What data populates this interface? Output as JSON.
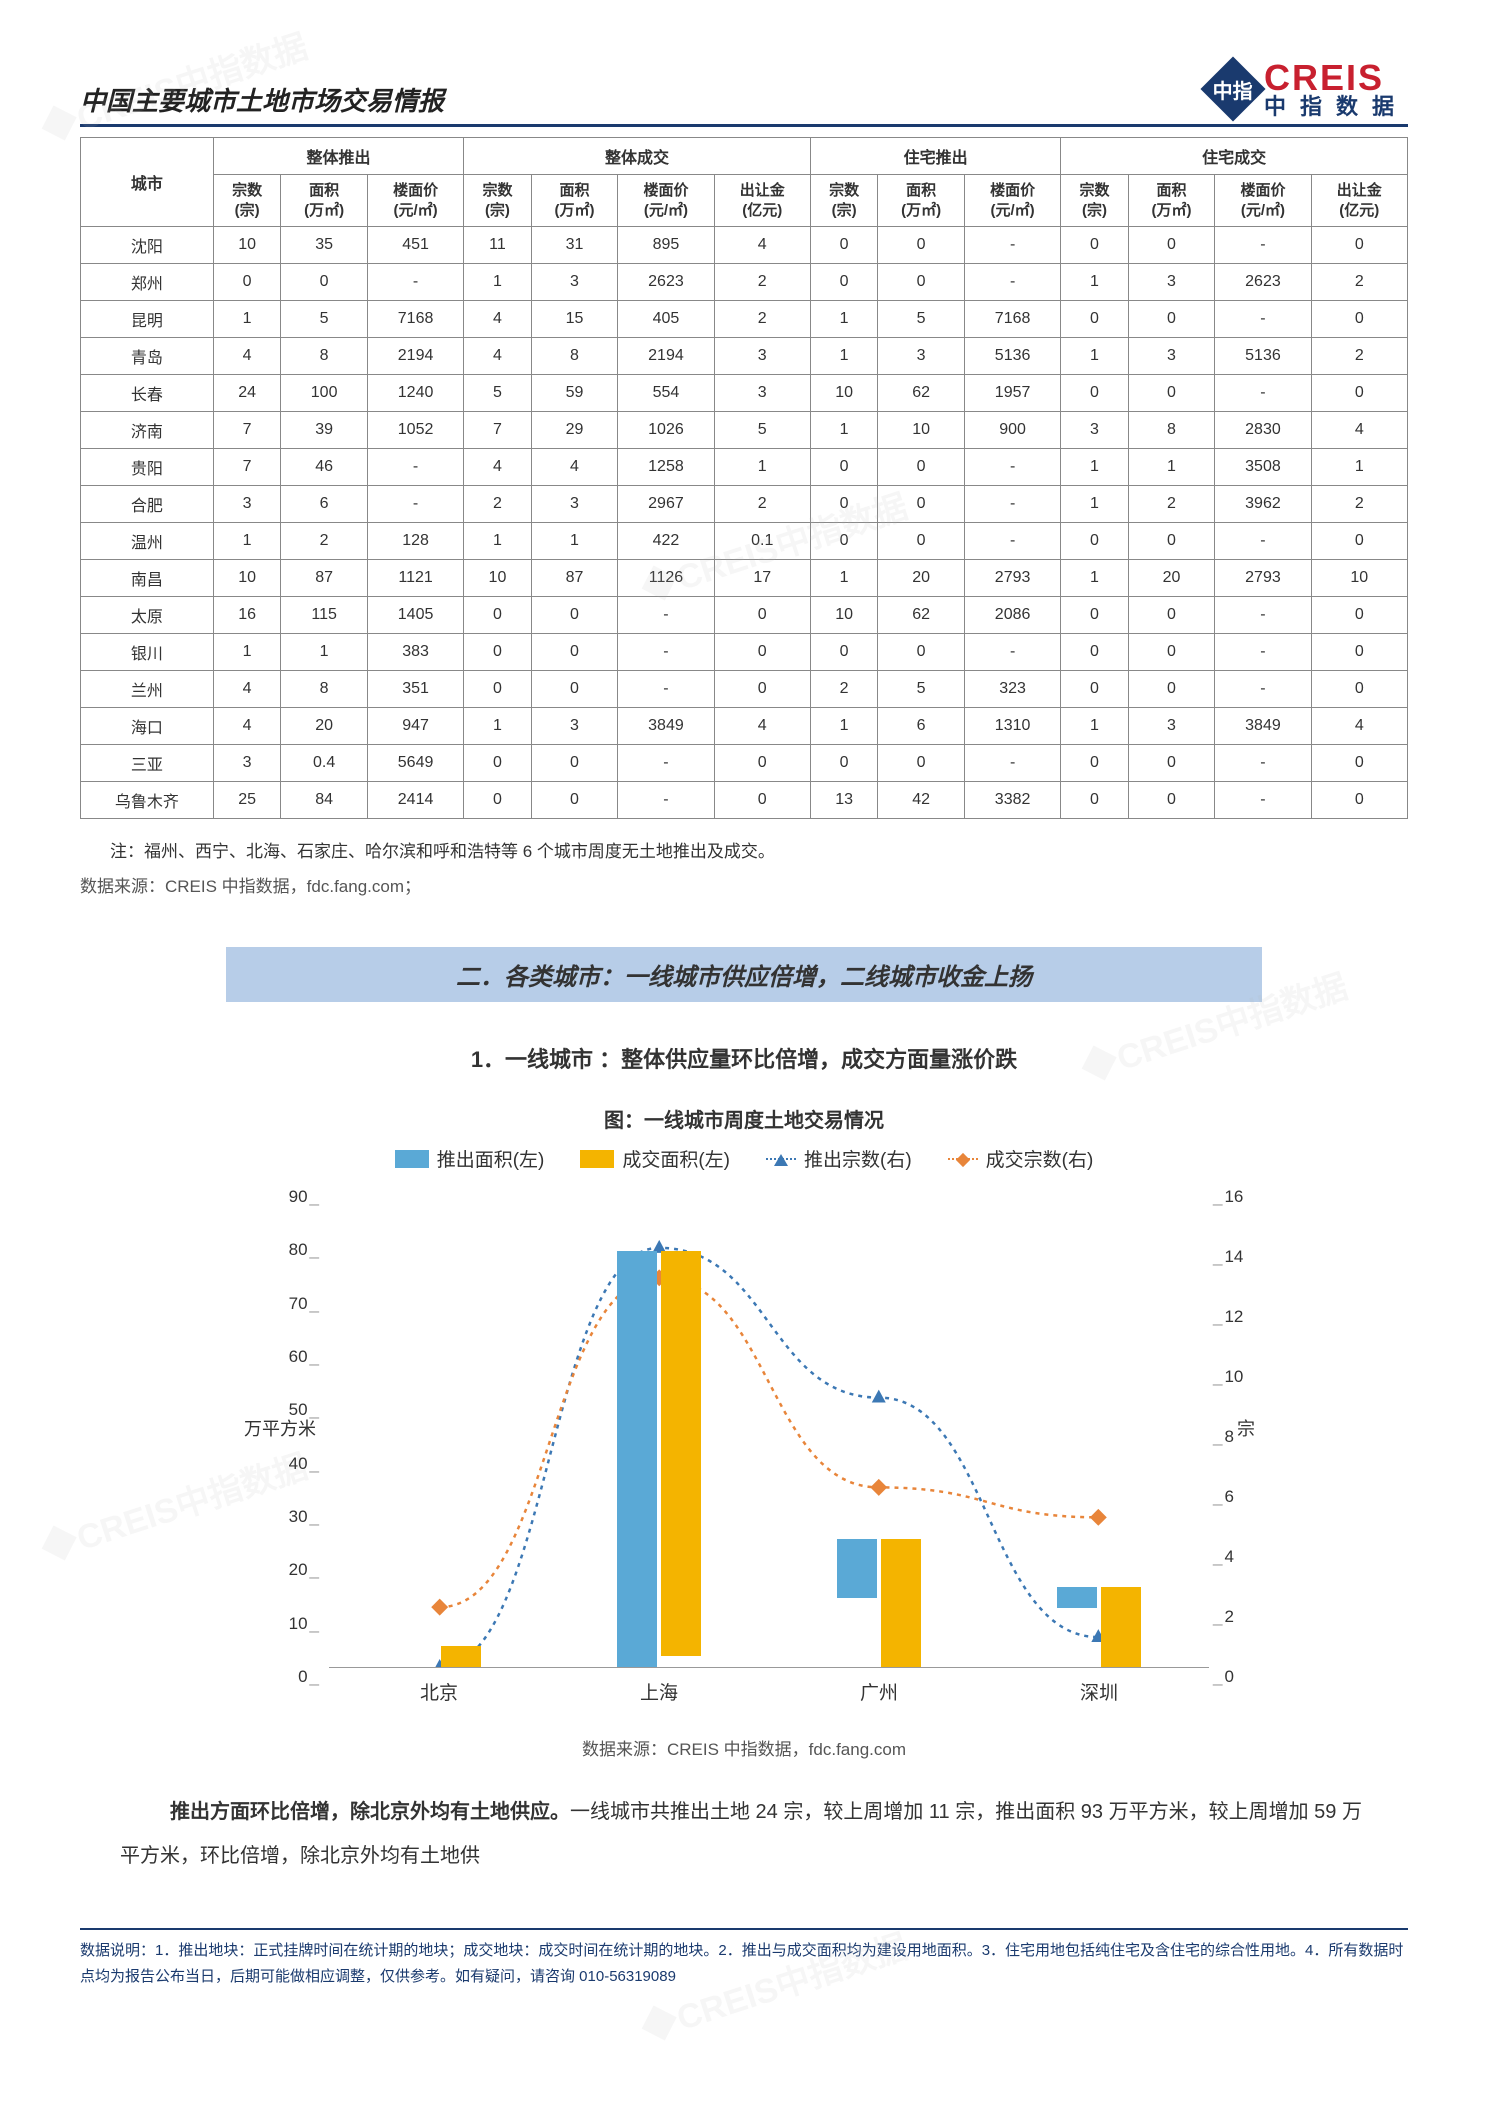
{
  "doc_title": "中国主要城市土地市场交易情报",
  "logo": {
    "en": "CREIS",
    "cn": "中指数据",
    "mark": "中指"
  },
  "watermark_text": "CREIS中指数据",
  "table": {
    "groups": [
      "整体推出",
      "整体成交",
      "住宅推出",
      "住宅成交"
    ],
    "city_header": "城市",
    "sub_headers": {
      "zong": "宗数\n(宗)",
      "mianji": "面积\n(万㎡)",
      "loumian": "楼面价\n(元/㎡)",
      "churang": "出让金\n(亿元)"
    },
    "rows": [
      {
        "city": "沈阳",
        "a": [
          "10",
          "35",
          "451"
        ],
        "b": [
          "11",
          "31",
          "895",
          "4"
        ],
        "c": [
          "0",
          "0",
          "-"
        ],
        "d": [
          "0",
          "0",
          "-",
          "0"
        ]
      },
      {
        "city": "郑州",
        "a": [
          "0",
          "0",
          "-"
        ],
        "b": [
          "1",
          "3",
          "2623",
          "2"
        ],
        "c": [
          "0",
          "0",
          "-"
        ],
        "d": [
          "1",
          "3",
          "2623",
          "2"
        ]
      },
      {
        "city": "昆明",
        "a": [
          "1",
          "5",
          "7168"
        ],
        "b": [
          "4",
          "15",
          "405",
          "2"
        ],
        "c": [
          "1",
          "5",
          "7168"
        ],
        "d": [
          "0",
          "0",
          "-",
          "0"
        ]
      },
      {
        "city": "青岛",
        "a": [
          "4",
          "8",
          "2194"
        ],
        "b": [
          "4",
          "8",
          "2194",
          "3"
        ],
        "c": [
          "1",
          "3",
          "5136"
        ],
        "d": [
          "1",
          "3",
          "5136",
          "2"
        ]
      },
      {
        "city": "长春",
        "a": [
          "24",
          "100",
          "1240"
        ],
        "b": [
          "5",
          "59",
          "554",
          "3"
        ],
        "c": [
          "10",
          "62",
          "1957"
        ],
        "d": [
          "0",
          "0",
          "-",
          "0"
        ]
      },
      {
        "city": "济南",
        "a": [
          "7",
          "39",
          "1052"
        ],
        "b": [
          "7",
          "29",
          "1026",
          "5"
        ],
        "c": [
          "1",
          "10",
          "900"
        ],
        "d": [
          "3",
          "8",
          "2830",
          "4"
        ]
      },
      {
        "city": "贵阳",
        "a": [
          "7",
          "46",
          "-"
        ],
        "b": [
          "4",
          "4",
          "1258",
          "1"
        ],
        "c": [
          "0",
          "0",
          "-"
        ],
        "d": [
          "1",
          "1",
          "3508",
          "1"
        ]
      },
      {
        "city": "合肥",
        "a": [
          "3",
          "6",
          "-"
        ],
        "b": [
          "2",
          "3",
          "2967",
          "2"
        ],
        "c": [
          "0",
          "0",
          "-"
        ],
        "d": [
          "1",
          "2",
          "3962",
          "2"
        ]
      },
      {
        "city": "温州",
        "a": [
          "1",
          "2",
          "128"
        ],
        "b": [
          "1",
          "1",
          "422",
          "0.1"
        ],
        "c": [
          "0",
          "0",
          "-"
        ],
        "d": [
          "0",
          "0",
          "-",
          "0"
        ]
      },
      {
        "city": "南昌",
        "a": [
          "10",
          "87",
          "1121"
        ],
        "b": [
          "10",
          "87",
          "1126",
          "17"
        ],
        "c": [
          "1",
          "20",
          "2793"
        ],
        "d": [
          "1",
          "20",
          "2793",
          "10"
        ]
      },
      {
        "city": "太原",
        "a": [
          "16",
          "115",
          "1405"
        ],
        "b": [
          "0",
          "0",
          "-",
          "0"
        ],
        "c": [
          "10",
          "62",
          "2086"
        ],
        "d": [
          "0",
          "0",
          "-",
          "0"
        ]
      },
      {
        "city": "银川",
        "a": [
          "1",
          "1",
          "383"
        ],
        "b": [
          "0",
          "0",
          "-",
          "0"
        ],
        "c": [
          "0",
          "0",
          "-"
        ],
        "d": [
          "0",
          "0",
          "-",
          "0"
        ]
      },
      {
        "city": "兰州",
        "a": [
          "4",
          "8",
          "351"
        ],
        "b": [
          "0",
          "0",
          "-",
          "0"
        ],
        "c": [
          "2",
          "5",
          "323"
        ],
        "d": [
          "0",
          "0",
          "-",
          "0"
        ]
      },
      {
        "city": "海口",
        "a": [
          "4",
          "20",
          "947"
        ],
        "b": [
          "1",
          "3",
          "3849",
          "4"
        ],
        "c": [
          "1",
          "6",
          "1310"
        ],
        "d": [
          "1",
          "3",
          "3849",
          "4"
        ]
      },
      {
        "city": "三亚",
        "a": [
          "3",
          "0.4",
          "5649"
        ],
        "b": [
          "0",
          "0",
          "-",
          "0"
        ],
        "c": [
          "0",
          "0",
          "-"
        ],
        "d": [
          "0",
          "0",
          "-",
          "0"
        ]
      },
      {
        "city": "乌鲁木齐",
        "a": [
          "25",
          "84",
          "2414"
        ],
        "b": [
          "0",
          "0",
          "-",
          "0"
        ],
        "c": [
          "13",
          "42",
          "3382"
        ],
        "d": [
          "0",
          "0",
          "-",
          "0"
        ]
      }
    ]
  },
  "note": "注：福州、西宁、北海、石家庄、哈尔滨和呼和浩特等 6 个城市周度无土地推出及成交。",
  "table_source": "数据来源：CREIS 中指数据，fdc.fang.com；",
  "section_banner": "二．各类城市：一线城市供应倍增，二线城市收金上扬",
  "subtitle": "1．一线城市 ：整体供应量环比倍增，成交方面量涨价跌",
  "chart": {
    "title": "图：一线城市周度土地交易情况",
    "legend": {
      "bar1": "推出面积(左)",
      "bar2": "成交面积(左)",
      "line1": "推出宗数(右)",
      "line2": "成交宗数(右)"
    },
    "colors": {
      "bar1": "#5aa9d6",
      "bar2": "#f4b400",
      "line1": "#3c78b4",
      "line2": "#e8853a"
    },
    "y_left": {
      "label": "万平方米",
      "min": 0,
      "max": 90,
      "step": 10
    },
    "y_right": {
      "label": "宗",
      "min": 0,
      "max": 16,
      "step": 2
    },
    "categories": [
      "北京",
      "上海",
      "广州",
      "深圳"
    ],
    "bar1_values": [
      0,
      78,
      11,
      4
    ],
    "bar2_values": [
      4,
      76,
      24,
      15
    ],
    "line1_values": [
      0,
      14,
      9,
      1
    ],
    "line2_values": [
      2,
      13,
      6,
      5
    ],
    "source": "数据来源：CREIS 中指数据，fdc.fang.com"
  },
  "paragraph": {
    "lead_bold": "推出方面环比倍增，除北京外均有土地供应。",
    "rest": "一线城市共推出土地 24 宗，较上周增加 11 宗，推出面积 93 万平方米，较上周增加 59 万平方米，环比倍增，除北京外均有土地供"
  },
  "footer": "数据说明：1．推出地块：正式挂牌时间在统计期的地块；成交地块：成交时间在统计期的地块。2．推出与成交面积均为建设用地面积。3．住宅用地包括纯住宅及含住宅的综合性用地。4．所有数据时点均为报告公布当日，后期可能做相应调整，仅供参考。如有疑问，请咨询 010-56319089"
}
